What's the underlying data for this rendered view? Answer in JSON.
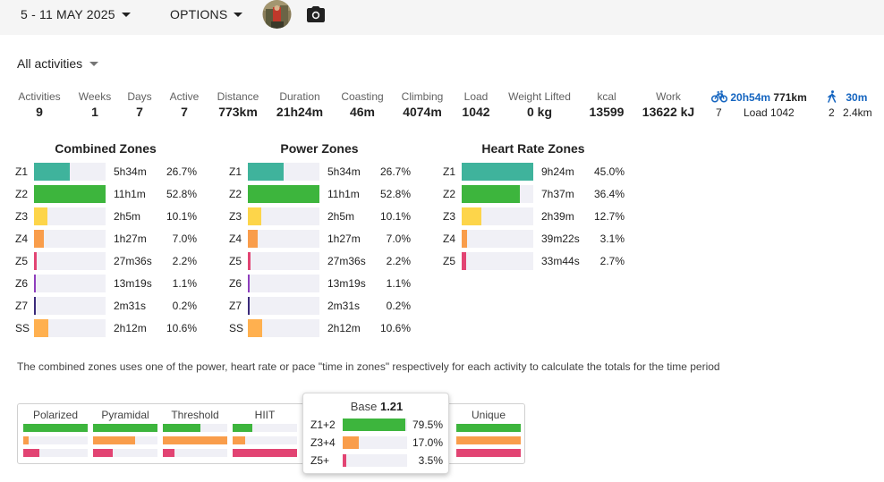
{
  "topbar": {
    "date_range": "5 - 11 MAY 2025",
    "options_label": "OPTIONS",
    "avatar": "avatar",
    "camera_icon": "camera-icon"
  },
  "filter": {
    "label": "All activities"
  },
  "stats": [
    {
      "label": "Activities",
      "value": "9"
    },
    {
      "label": "Weeks",
      "value": "1"
    },
    {
      "label": "Days",
      "value": "7"
    },
    {
      "label": "Active",
      "value": "7"
    },
    {
      "label": "Distance",
      "value": "773km"
    },
    {
      "label": "Duration",
      "value": "21h24m"
    },
    {
      "label": "Coasting",
      "value": "46m"
    },
    {
      "label": "Climbing",
      "value": "4074m"
    },
    {
      "label": "Load",
      "value": "1042"
    },
    {
      "label": "Weight Lifted",
      "value": "0 kg"
    },
    {
      "label": "kcal",
      "value": "13599"
    },
    {
      "label": "Work",
      "value": "13622 kJ"
    }
  ],
  "sports": {
    "ride": {
      "icon": "bike-icon",
      "time": "20h54m",
      "distance": "771km",
      "count": "7",
      "load": "Load 1042"
    },
    "walk": {
      "icon": "walk-icon",
      "time": "30m",
      "count": "2",
      "distance": "2.4km"
    }
  },
  "zones": {
    "combined": {
      "title": "Combined Zones",
      "rows": [
        {
          "zone": "Z1",
          "time": "5h34m",
          "pct": "26.7%",
          "frac": 0.506,
          "color": "#3fb39c"
        },
        {
          "zone": "Z2",
          "time": "11h1m",
          "pct": "52.8%",
          "frac": 1.0,
          "color": "#3db53d"
        },
        {
          "zone": "Z3",
          "time": "2h5m",
          "pct": "10.1%",
          "frac": 0.19,
          "color": "#fdd54a"
        },
        {
          "zone": "Z4",
          "time": "1h27m",
          "pct": "7.0%",
          "frac": 0.133,
          "color": "#f99d4b"
        },
        {
          "zone": "Z5",
          "time": "27m36s",
          "pct": "2.2%",
          "frac": 0.042,
          "color": "#e24473"
        },
        {
          "zone": "Z6",
          "time": "13m19s",
          "pct": "1.1%",
          "frac": 0.021,
          "color": "#8e3ebd"
        },
        {
          "zone": "Z7",
          "time": "2m31s",
          "pct": "0.2%",
          "frac": 0.01,
          "color": "#3a2a7a"
        },
        {
          "zone": "SS",
          "time": "2h12m",
          "pct": "10.6%",
          "frac": 0.2,
          "color": "#ffb04f"
        }
      ]
    },
    "power": {
      "title": "Power Zones",
      "rows": [
        {
          "zone": "Z1",
          "time": "5h34m",
          "pct": "26.7%",
          "frac": 0.506,
          "color": "#3fb39c"
        },
        {
          "zone": "Z2",
          "time": "11h1m",
          "pct": "52.8%",
          "frac": 1.0,
          "color": "#3db53d"
        },
        {
          "zone": "Z3",
          "time": "2h5m",
          "pct": "10.1%",
          "frac": 0.19,
          "color": "#fdd54a"
        },
        {
          "zone": "Z4",
          "time": "1h27m",
          "pct": "7.0%",
          "frac": 0.133,
          "color": "#f99d4b"
        },
        {
          "zone": "Z5",
          "time": "27m36s",
          "pct": "2.2%",
          "frac": 0.042,
          "color": "#e24473"
        },
        {
          "zone": "Z6",
          "time": "13m19s",
          "pct": "1.1%",
          "frac": 0.021,
          "color": "#8e3ebd"
        },
        {
          "zone": "Z7",
          "time": "2m31s",
          "pct": "0.2%",
          "frac": 0.01,
          "color": "#3a2a7a"
        },
        {
          "zone": "SS",
          "time": "2h12m",
          "pct": "10.6%",
          "frac": 0.2,
          "color": "#ffb04f"
        }
      ]
    },
    "heart_rate": {
      "title": "Heart Rate Zones",
      "rows": [
        {
          "zone": "Z1",
          "time": "9h24m",
          "pct": "45.0%",
          "frac": 1.0,
          "color": "#3fb39c"
        },
        {
          "zone": "Z2",
          "time": "7h37m",
          "pct": "36.4%",
          "frac": 0.81,
          "color": "#3db53d"
        },
        {
          "zone": "Z3",
          "time": "2h39m",
          "pct": "12.7%",
          "frac": 0.28,
          "color": "#fdd54a"
        },
        {
          "zone": "Z4",
          "time": "39m22s",
          "pct": "3.1%",
          "frac": 0.07,
          "color": "#f99d4b"
        },
        {
          "zone": "Z5",
          "time": "33m44s",
          "pct": "2.7%",
          "frac": 0.06,
          "color": "#e24473"
        }
      ]
    }
  },
  "note": "The combined zones uses one of the power, heart rate or pace \"time in zones\" respectively for each activity to calculate the totals for the time period",
  "distributions": [
    {
      "label": "Polarized",
      "bars": [
        {
          "frac": 1.0,
          "color": "#3db53d"
        },
        {
          "frac": 0.08,
          "color": "#f99d4b"
        },
        {
          "frac": 0.25,
          "color": "#e24473"
        }
      ]
    },
    {
      "label": "Pyramidal",
      "bars": [
        {
          "frac": 1.0,
          "color": "#3db53d"
        },
        {
          "frac": 0.65,
          "color": "#f99d4b"
        },
        {
          "frac": 0.3,
          "color": "#e24473"
        }
      ]
    },
    {
      "label": "Threshold",
      "bars": [
        {
          "frac": 0.58,
          "color": "#3db53d"
        },
        {
          "frac": 1.0,
          "color": "#f99d4b"
        },
        {
          "frac": 0.18,
          "color": "#e24473"
        }
      ]
    },
    {
      "label": "HIIT",
      "bars": [
        {
          "frac": 0.3,
          "color": "#3db53d"
        },
        {
          "frac": 0.2,
          "color": "#f99d4b"
        },
        {
          "frac": 1.0,
          "color": "#e24473"
        }
      ]
    },
    {
      "label": "Unique",
      "bars": [
        {
          "frac": 1.0,
          "color": "#3db53d"
        },
        {
          "frac": 1.0,
          "color": "#f99d4b"
        },
        {
          "frac": 1.0,
          "color": "#e24473"
        }
      ]
    }
  ],
  "popup": {
    "title": "Base",
    "score": "1.21",
    "rows": [
      {
        "label": "Z1+2",
        "pct": "79.5%",
        "frac": 0.795,
        "color": "#3db53d"
      },
      {
        "label": "Z3+4",
        "pct": "17.0%",
        "frac": 0.21,
        "color": "#f99d4b"
      },
      {
        "label": "Z5+",
        "pct": "3.5%",
        "frac": 0.045,
        "color": "#e24473"
      }
    ]
  }
}
